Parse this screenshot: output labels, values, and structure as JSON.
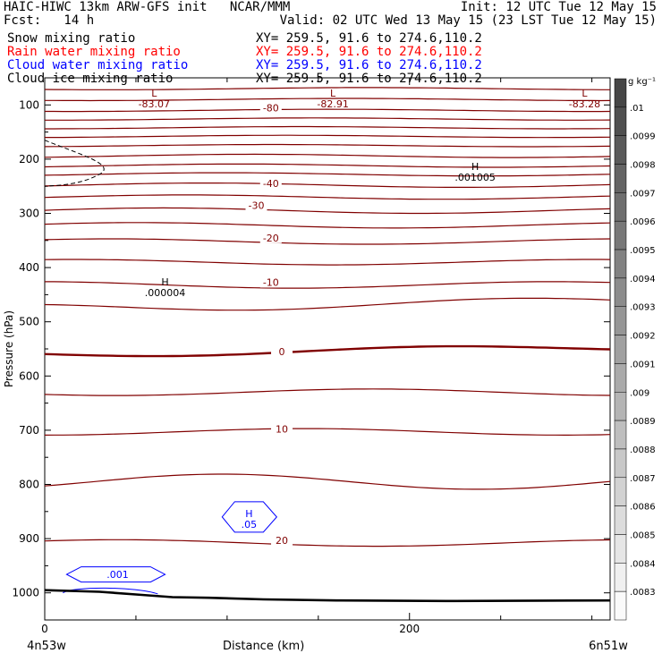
{
  "header": {
    "line1_left": "HAIC-HIWC 13km ARW-GFS init   NCAR/MMM",
    "line1_right": "Init: 12 UTC Tue 12 May 15",
    "line2_left": "Fcst:   14 h",
    "line2_right": "Valid: 02 UTC Wed 13 May 15 (23 LST Tue 12 May 15)",
    "fields": [
      {
        "name": "Snow mixing ratio",
        "xy": "XY= 259.5, 91.6 to 274.6,110.2",
        "color": "#000000"
      },
      {
        "name": "Rain water mixing ratio",
        "xy": "XY= 259.5, 91.6 to 274.6,110.2",
        "color": "#ff0000"
      },
      {
        "name": "Cloud water mixing ratio",
        "xy": "XY= 259.5, 91.6 to 274.6,110.2",
        "color": "#0000ff"
      },
      {
        "name": "Cloud ice mixing ratio",
        "xy": "XY= 259.5, 91.6 to 274.6,110.2",
        "color": "#000000"
      }
    ]
  },
  "chart_data": {
    "type": "contour",
    "ylabel": "Pressure (hPa)",
    "xlabel": "Distance (km)",
    "x_ticks": [
      0,
      200
    ],
    "y_ticks": [
      100,
      200,
      300,
      400,
      500,
      600,
      700,
      800,
      900,
      1000
    ],
    "x_range_km": [
      0,
      310
    ],
    "y_range_hpa": [
      50,
      1050
    ],
    "x_endpoints": {
      "left": "4n53w",
      "right": "6n51w"
    },
    "contour_color": "#800000",
    "cloud_water_color": "#0000ff",
    "temperature_labels": [
      {
        "text": "-80",
        "x": 124,
        "p": 110
      },
      {
        "text": "-40",
        "x": 124,
        "p": 250
      },
      {
        "text": "-30",
        "x": 116,
        "p": 290
      },
      {
        "text": "-20",
        "x": 124,
        "p": 350
      },
      {
        "text": "-10",
        "x": 124,
        "p": 432
      },
      {
        "text": "0",
        "x": 130,
        "p": 560
      },
      {
        "text": "10",
        "x": 130,
        "p": 703
      },
      {
        "text": "20",
        "x": 130,
        "p": 908
      }
    ],
    "extrema_labels": [
      {
        "kind": "L",
        "value": "-83.07",
        "x": 60,
        "p": 85,
        "color": "#800000"
      },
      {
        "kind": "L",
        "value": "-82.91",
        "x": 158,
        "p": 85,
        "color": "#800000"
      },
      {
        "kind": "L",
        "value": "-83.28",
        "x": 296,
        "p": 85,
        "color": "#800000"
      },
      {
        "kind": "H",
        "value": ".001005",
        "x": 236,
        "p": 220,
        "color": "#000000"
      },
      {
        "kind": "H",
        "value": ".000004",
        "x": 66,
        "p": 433,
        "color": "#000000"
      },
      {
        "kind": "H",
        "value": ".05",
        "x": 112,
        "p": 860,
        "color": "#0000ff"
      }
    ],
    "cloud_water_labels": [
      {
        "text": ".001",
        "x": 40,
        "p": 966
      }
    ],
    "colorbar": {
      "unit_label": "g kg⁻¹",
      "ticks": [
        ".01",
        ".0099",
        ".0098",
        ".0097",
        ".0096",
        ".0095",
        ".0094",
        ".0093",
        ".0092",
        ".0091",
        ".009",
        ".0089",
        ".0088",
        ".0087",
        ".0086",
        ".0085",
        ".0084",
        ".0083"
      ]
    }
  }
}
